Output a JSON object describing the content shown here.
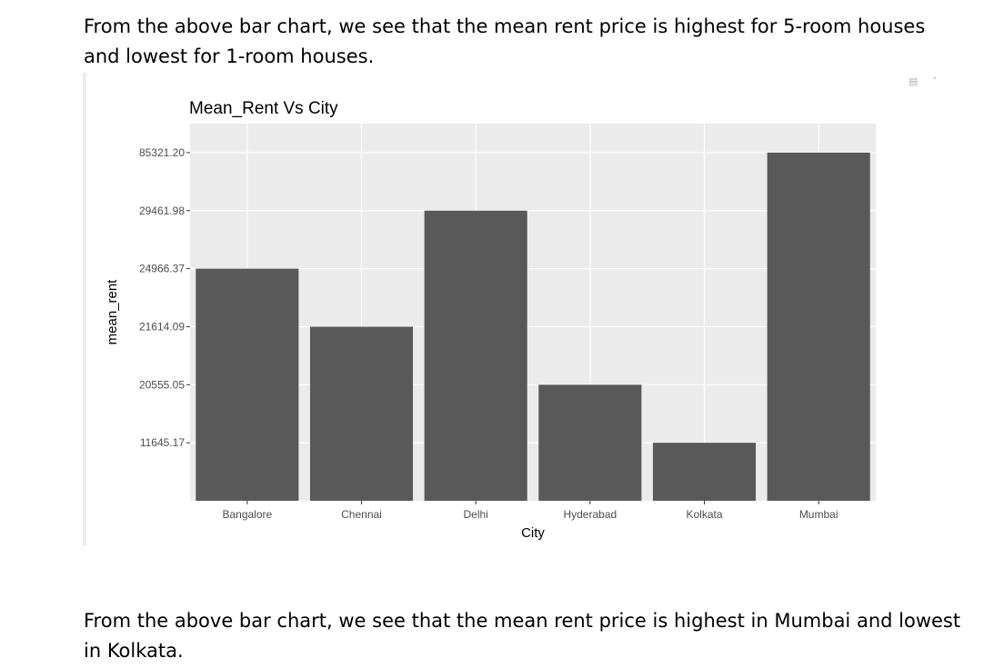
{
  "text": {
    "para_top": "From the above bar chart, we see that the mean rent price is highest for 5-room houses and lowest for 1-room houses.",
    "para_bottom": "From the above bar chart, we see that the mean rent price is highest in Mumbai and lowest in Kolkata."
  },
  "toolbar": {
    "options_icon": "chunk-options-icon",
    "collapse_icon": "collapse-icon"
  },
  "colors": {
    "bar": "#595959",
    "panel": "#ebebeb",
    "grid": "#ffffff",
    "tick": "#4d4d4d"
  },
  "chart_data": {
    "type": "bar",
    "title": "Mean_Rent Vs City",
    "xlabel": "City",
    "ylabel": "mean_rent",
    "categories": [
      "Bangalore",
      "Chennai",
      "Delhi",
      "Hyderabad",
      "Kolkata",
      "Mumbai"
    ],
    "values": [
      "24966.37",
      "21614.09",
      "29461.98",
      "20555.05",
      "11645.17",
      "85321.20"
    ],
    "y_ticks": [
      "11645.17",
      "20555.05",
      "21614.09",
      "24966.37",
      "29461.98",
      "85321.20"
    ],
    "y_axis_discrete": true,
    "grid": true,
    "legend": "none"
  }
}
